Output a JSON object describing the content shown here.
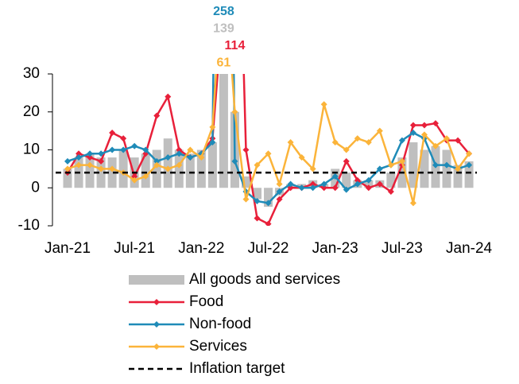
{
  "chart_data": {
    "type": "bar-line",
    "categories": [
      "Jan-21",
      null,
      null,
      null,
      null,
      null,
      "Jul-21",
      null,
      null,
      null,
      null,
      null,
      "Jan-22",
      null,
      null,
      null,
      null,
      null,
      "Jul-22",
      null,
      null,
      null,
      null,
      null,
      "Jan-23",
      null,
      null,
      null,
      null,
      null,
      "Jul-23",
      null,
      null,
      null,
      null,
      null,
      "Jan-24"
    ],
    "ylim": [
      -10,
      30
    ],
    "yticks": [
      -10,
      0,
      10,
      20,
      30
    ],
    "series": [
      {
        "name": "All goods and services",
        "kind": "bar",
        "color": "#bfbfbf",
        "values": [
          5,
          8,
          9,
          8,
          8,
          10,
          8,
          9,
          10,
          13,
          10,
          9,
          10,
          12,
          139,
          20,
          3,
          -3,
          -5,
          -2,
          1,
          1,
          2,
          1,
          5,
          4,
          2,
          2,
          2,
          4,
          8,
          12,
          10,
          11,
          10,
          6,
          7
        ],
        "value_labels": [
          null,
          null,
          null,
          null,
          null,
          null,
          null,
          null,
          null,
          null,
          null,
          null,
          null,
          null,
          "139",
          null,
          null,
          null,
          null,
          null,
          null,
          null,
          null,
          null,
          null,
          null,
          null,
          null,
          null,
          null,
          null,
          null,
          null,
          null,
          null,
          null,
          null
        ]
      },
      {
        "name": "Food",
        "kind": "line",
        "color": "#e8203a",
        "values": [
          4,
          9,
          8,
          7,
          14.5,
          13,
          3,
          9,
          19,
          24,
          10,
          8,
          9,
          13,
          50,
          114,
          10,
          -8,
          -9.5,
          -3,
          0,
          0,
          1,
          0,
          0,
          7,
          2,
          0,
          1,
          -1,
          6,
          16.5,
          16.5,
          17,
          12.5,
          12.5,
          9
        ],
        "value_labels": [
          null,
          null,
          null,
          null,
          null,
          null,
          null,
          null,
          null,
          null,
          null,
          null,
          null,
          null,
          null,
          "114",
          null,
          null,
          null,
          null,
          null,
          null,
          null,
          null,
          null,
          null,
          null,
          null,
          null,
          null,
          null,
          null,
          null,
          null,
          null,
          null,
          null
        ]
      },
      {
        "name": "Non-food",
        "kind": "line",
        "color": "#1f8bb8",
        "values": [
          7,
          8,
          9,
          9,
          10,
          10,
          11,
          10,
          7,
          8,
          9,
          8,
          9,
          12,
          258,
          7,
          -1,
          -3.5,
          -4,
          -1,
          1,
          0,
          0,
          1,
          3,
          -0.5,
          1,
          2,
          5,
          6,
          12.5,
          14.5,
          13,
          6,
          6,
          5,
          6
        ],
        "value_labels": [
          null,
          null,
          null,
          null,
          null,
          null,
          null,
          null,
          null,
          null,
          null,
          null,
          null,
          null,
          "258",
          null,
          null,
          null,
          null,
          null,
          null,
          null,
          null,
          null,
          null,
          null,
          null,
          null,
          null,
          null,
          null,
          null,
          null,
          null,
          null,
          null,
          null
        ]
      },
      {
        "name": "Services",
        "kind": "line",
        "color": "#fbb43a",
        "values": [
          5,
          6,
          6,
          5,
          5,
          4,
          2,
          3,
          6,
          5,
          6,
          10,
          8,
          16,
          61,
          20,
          -3,
          6,
          9,
          1,
          12,
          8,
          5,
          22,
          12,
          10,
          13,
          12,
          15,
          6,
          7,
          -4,
          14,
          11,
          13,
          5,
          9
        ],
        "value_labels": [
          null,
          null,
          null,
          null,
          null,
          null,
          null,
          null,
          null,
          null,
          null,
          null,
          null,
          null,
          "61",
          null,
          null,
          null,
          null,
          null,
          null,
          null,
          null,
          null,
          null,
          null,
          null,
          null,
          null,
          null,
          null,
          null,
          null,
          null,
          null,
          null,
          null
        ]
      }
    ],
    "reference_line": {
      "name": "Inflation target",
      "value": 4,
      "color": "#000000"
    }
  }
}
